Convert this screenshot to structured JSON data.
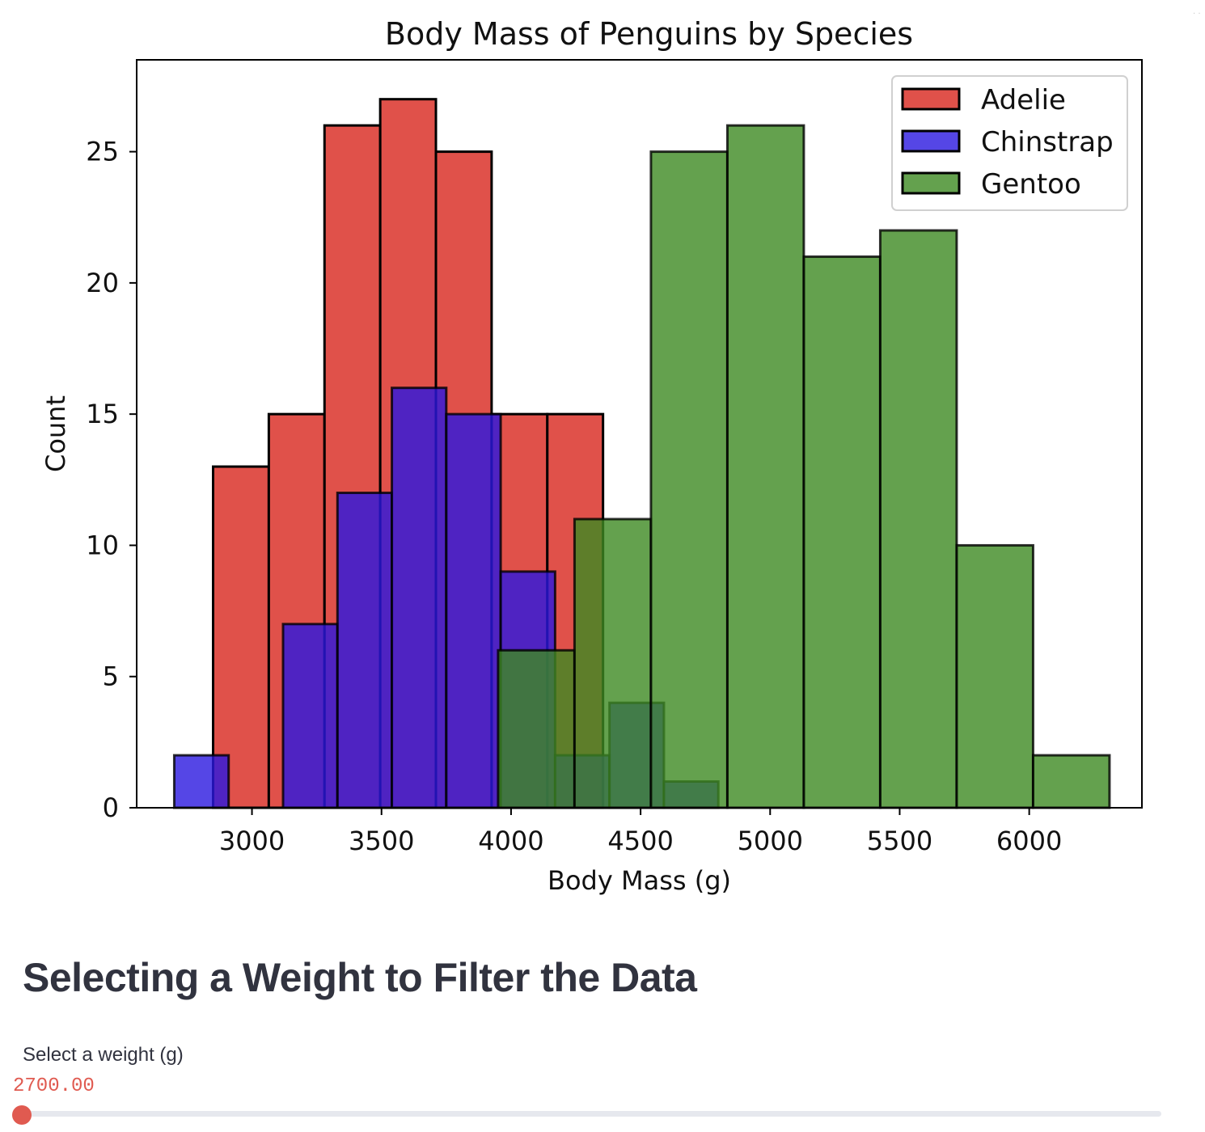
{
  "corner": {
    "icon": "ellipsis-icon",
    "text": "· ·"
  },
  "chart_data": {
    "type": "histogram",
    "title": "Body Mass of Penguins by Species",
    "xlabel": "Body Mass (g)",
    "ylabel": "Count",
    "xlim": [
      2555,
      6435
    ],
    "ylim": [
      0,
      28.5
    ],
    "xticks": [
      3000,
      3500,
      4000,
      4500,
      5000,
      5500,
      6000
    ],
    "yticks": [
      0,
      5,
      10,
      15,
      20,
      25
    ],
    "grid": false,
    "legend_position": "top-right",
    "series": [
      {
        "name": "Adelie",
        "color": "#e0514a",
        "alpha": 1,
        "bin_edges": [
          2850,
          3065,
          3280,
          3495,
          3710,
          3925,
          4140,
          4355
        ],
        "values": [
          13,
          15,
          26,
          27,
          25,
          15,
          15
        ]
      },
      {
        "name": "Chinstrap",
        "color": "#2a18e0",
        "alpha": 0.8,
        "bin_edges": [
          2700,
          2910,
          3120,
          3330,
          3540,
          3750,
          3960,
          4170,
          4380,
          4590,
          4800
        ],
        "values": [
          2,
          0,
          7,
          12,
          16,
          15,
          9,
          2,
          4,
          1
        ]
      },
      {
        "name": "Gentoo",
        "color": "#3d8a22",
        "alpha": 0.8,
        "bin_edges": [
          3950,
          4245,
          4540,
          4835,
          5130,
          5425,
          5720,
          6015,
          6310
        ],
        "values": [
          6,
          11,
          25,
          26,
          21,
          22,
          10,
          2
        ]
      }
    ]
  },
  "section": {
    "heading": "Selecting a Weight to Filter the Data"
  },
  "slider": {
    "label": "Select a weight (g)",
    "value_text": "2700.00",
    "value": 2700,
    "position_fraction": 0,
    "accent_color": "#e05a50"
  }
}
